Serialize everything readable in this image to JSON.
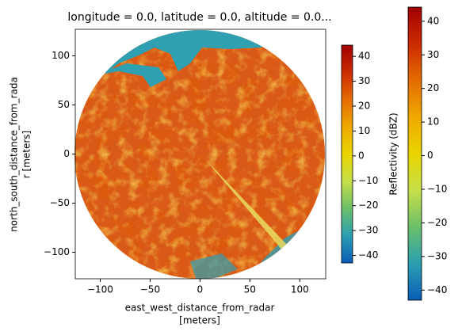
{
  "chart_data": {
    "type": "image",
    "title": "longitude = 0.0, latitude = 0.0, altitude = 0.0...",
    "xlabel": [
      "east_west_distance_from_radar",
      "[meters]"
    ],
    "ylabel": [
      "north_south_distance_from_rada",
      "r [meters]"
    ],
    "xlim": [
      -125,
      126
    ],
    "ylim": [
      -127,
      127
    ],
    "xticks": [
      {
        "value": -100,
        "label": "−100"
      },
      {
        "value": -50,
        "label": "−50"
      },
      0,
      50,
      100
    ],
    "yticks": [
      {
        "value": -100,
        "label": "−100"
      },
      {
        "value": -50,
        "label": "−50"
      },
      0,
      50,
      100
    ],
    "colormap_colors": [
      "#0a5db8",
      "#2a9fb0",
      "#6cbf6a",
      "#c7df48",
      "#e9d500",
      "#efa800",
      "#e46c00",
      "#cc2a00",
      "#a00000"
    ],
    "colorbars": [
      {
        "label": "Reflectivity (dBZ)",
        "lim": [
          -43,
          44.5
        ],
        "ticks": [
          {
            "value": -40,
            "label": "−40"
          },
          {
            "value": -30,
            "label": "−30"
          },
          {
            "value": -20,
            "label": "−20"
          },
          {
            "value": -10,
            "label": "−10"
          },
          0,
          10,
          20,
          30,
          40
        ]
      },
      {
        "lim": [
          -43,
          44.2
        ],
        "ticks": [
          {
            "value": -40,
            "label": "−40"
          },
          {
            "value": -30,
            "label": "−30"
          },
          {
            "value": -20,
            "label": "−20"
          },
          {
            "value": -10,
            "label": "−10"
          },
          0,
          10,
          20,
          30,
          40
        ]
      }
    ]
  }
}
